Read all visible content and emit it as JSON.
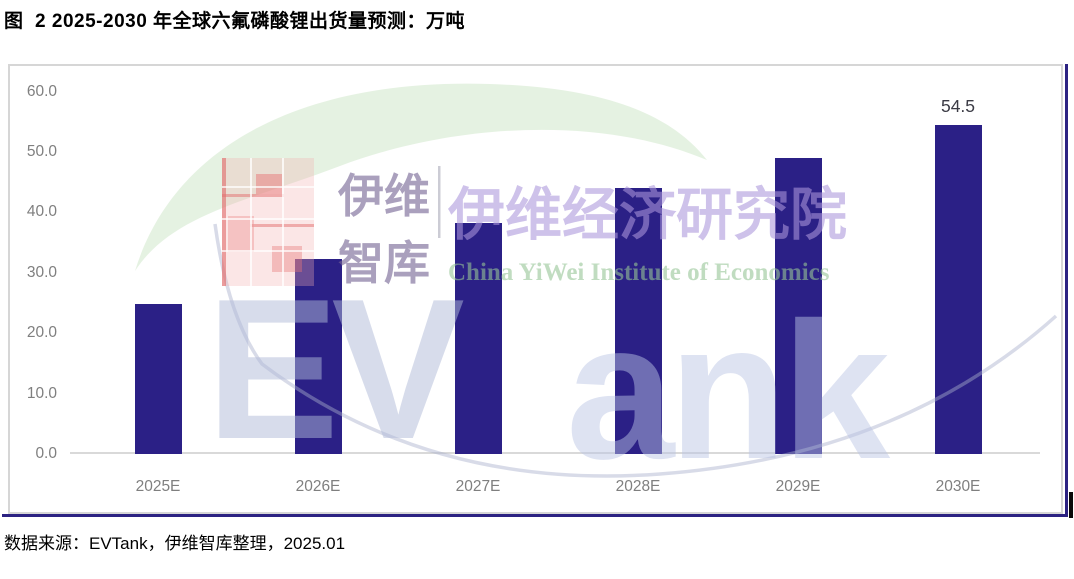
{
  "figure_title": "图  2 2025-2030 年全球六氟磷酸锂出货量预测：万吨",
  "source_note": "数据来源：EVTank，伊维智库整理，2025.01",
  "chart_data": {
    "type": "bar",
    "title": "图  2 2025-2030 年全球六氟磷酸锂出货量预测：万吨",
    "unit": "万吨",
    "categories": [
      "2025E",
      "2026E",
      "2027E",
      "2028E",
      "2029E",
      "2030E"
    ],
    "values": [
      24.8,
      32.3,
      38.3,
      44.0,
      49.0,
      54.5
    ],
    "data_labels": [
      "",
      "",
      "",
      "",
      "",
      "54.5"
    ],
    "xlabel": "",
    "ylabel": "",
    "ylim": [
      0,
      60
    ],
    "ytick_values": [
      60,
      50,
      40,
      30,
      20,
      10,
      0
    ],
    "ytick_labels": [
      "60.0",
      "50.0",
      "40.0",
      "30.0",
      "20.0",
      "10.0",
      "0.0"
    ],
    "grid": false,
    "legend": null,
    "bar_color": "#2b2086"
  },
  "watermark": {
    "cn_short_top": "伊维",
    "cn_short_bottom": "智库",
    "cn_full": "伊维经济研究院",
    "en_full": "China YiWei Institute of Economics",
    "brand_large": "EV",
    "brand_small": "ank"
  },
  "colors": {
    "bar": "#2b2086",
    "accent_rule": "#2c2282",
    "frame_border": "#d6d6d6",
    "axis_line": "#d9d9d9",
    "tick_text": "#7f7f7f",
    "data_label_text": "#3b3b45",
    "watermark_green": "#e3f1e0",
    "watermark_pink": "#f5b8b8",
    "watermark_lavender": "#b49ae2",
    "watermark_blue_letters": "#b0bad8"
  }
}
